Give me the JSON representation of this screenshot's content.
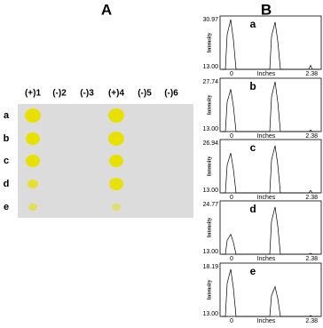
{
  "panel_a": {
    "label": "A",
    "columns": [
      "(+)1",
      "(-)2",
      "(-)3",
      "(+)4",
      "(-)5",
      "(-)6"
    ],
    "rows": [
      "a",
      "b",
      "c",
      "d",
      "e"
    ]
  },
  "panel_b": {
    "label": "B",
    "plots": [
      {
        "letter": "a",
        "y_max": "30.97",
        "y_min": "13.00",
        "x_start": "0",
        "x_end": "2.38",
        "x_label": "Inches",
        "y_label": "Intensity"
      },
      {
        "letter": "b",
        "y_max": "27.74",
        "y_min": "13.00",
        "x_start": "0",
        "x_end": "2.38",
        "x_label": "Inches",
        "y_label": "Intensity"
      },
      {
        "letter": "c",
        "y_max": "26.94",
        "y_min": "13.00",
        "x_start": "0",
        "x_end": "2.38",
        "x_label": "Inches",
        "y_label": "Intensity"
      },
      {
        "letter": "d",
        "y_max": "24.77",
        "y_min": "13.00",
        "x_start": "0",
        "x_end": "2.38",
        "x_label": "Inches",
        "y_label": "Intensity"
      },
      {
        "letter": "e",
        "y_max": "18.19",
        "y_min": "13.00",
        "x_start": "0",
        "x_end": "2.38",
        "x_label": "Inches",
        "y_label": "Intensity"
      }
    ]
  }
}
